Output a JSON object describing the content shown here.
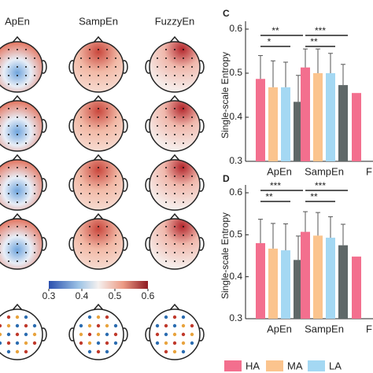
{
  "topomaps": {
    "columns": [
      "ApEn",
      "SampEn",
      "FuzzyEn"
    ],
    "colorbar": {
      "ticks": [
        0.3,
        0.4,
        0.5,
        0.6
      ]
    }
  },
  "chart_data": [
    {
      "type": "bar",
      "panel": "C",
      "ylabel": "Single-scale Entropy",
      "categories": [
        "ApEn",
        "SampEn",
        "F"
      ],
      "ylim": [
        0.3,
        0.6
      ],
      "yticks": [
        0.3,
        0.4,
        0.5,
        0.6
      ],
      "series": [
        {
          "name": "HA",
          "color": "#f36f8e",
          "values": [
            0.487,
            0.513,
            0.455
          ],
          "errors": [
            0.053,
            0.042,
            null
          ]
        },
        {
          "name": "MA",
          "color": "#fbc48e",
          "values": [
            0.468,
            0.5,
            null
          ],
          "errors": [
            0.06,
            0.055,
            null
          ]
        },
        {
          "name": "LA",
          "color": "#a4d8f3",
          "values": [
            0.468,
            0.5,
            null
          ],
          "errors": [
            0.057,
            0.045,
            null
          ]
        },
        {
          "color": "#5f6868",
          "values": [
            0.435,
            0.473,
            null
          ],
          "errors": [
            0.06,
            0.047,
            null
          ]
        }
      ],
      "annotations": [
        "**",
        "*",
        "***",
        "**"
      ]
    },
    {
      "type": "bar",
      "panel": "D",
      "ylabel": "Single-scale Entropy",
      "categories": [
        "ApEn",
        "SampEn",
        "F"
      ],
      "ylim": [
        0.3,
        0.6
      ],
      "yticks": [
        0.3,
        0.4,
        0.5,
        0.6
      ],
      "series": [
        {
          "name": "HA",
          "color": "#f36f8e",
          "values": [
            0.48,
            0.507,
            0.448
          ],
          "errors": [
            0.057,
            0.048,
            null
          ]
        },
        {
          "name": "MA",
          "color": "#fbc48e",
          "values": [
            0.467,
            0.498,
            null
          ],
          "errors": [
            0.06,
            0.055,
            null
          ]
        },
        {
          "name": "LA",
          "color": "#a4d8f3",
          "values": [
            0.463,
            0.493,
            null
          ],
          "errors": [
            0.063,
            0.05,
            null
          ]
        },
        {
          "color": "#5f6868",
          "values": [
            0.44,
            0.475,
            null
          ],
          "errors": [
            0.057,
            0.05,
            null
          ]
        }
      ],
      "annotations": [
        "***",
        "**",
        "***",
        "**"
      ]
    }
  ]
}
